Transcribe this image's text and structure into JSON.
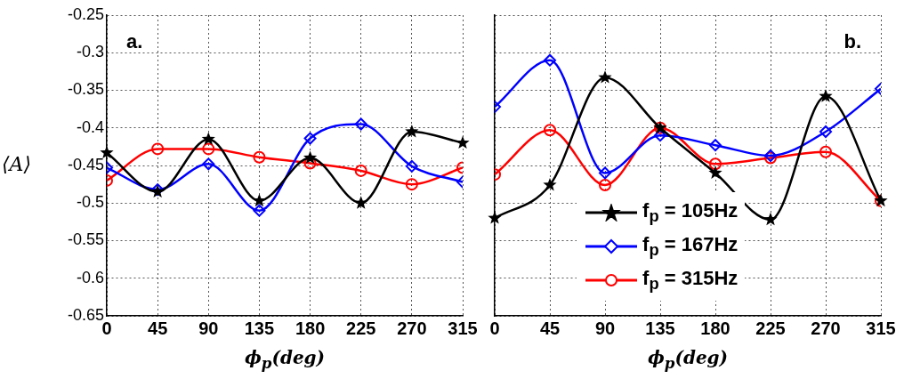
{
  "chart_data": [
    {
      "type": "line",
      "annotations": [
        "a."
      ],
      "xlabel": "ϕ$_{p}$(deg)",
      "ylabel": "⟨A⟩",
      "x": [
        0,
        45,
        90,
        135,
        180,
        225,
        270,
        315
      ],
      "xlim": [
        0,
        315
      ],
      "xticks": [
        0,
        45,
        90,
        135,
        180,
        225,
        270,
        315
      ],
      "ylim": [
        -0.65,
        -0.25
      ],
      "yticks": [
        -0.65,
        -0.6,
        -0.55,
        -0.5,
        -0.45,
        -0.4,
        -0.35,
        -0.3,
        -0.25
      ],
      "grid": true,
      "legend": false,
      "line_style": "solid",
      "series": [
        {
          "color": "#000000",
          "marker": "star",
          "values": [
            -0.433,
            -0.485,
            -0.415,
            -0.497,
            -0.44,
            -0.5,
            -0.405,
            -0.42
          ]
        },
        {
          "color": "#0000ff",
          "marker": "diamond",
          "values": [
            -0.453,
            -0.482,
            -0.448,
            -0.51,
            -0.414,
            -0.395,
            -0.451,
            -0.472
          ]
        },
        {
          "color": "#ff0000",
          "marker": "circle",
          "values": [
            -0.47,
            -0.428,
            -0.428,
            -0.439,
            -0.447,
            -0.457,
            -0.475,
            -0.453
          ]
        }
      ]
    },
    {
      "type": "line",
      "annotations": [
        "b."
      ],
      "xlabel": "ϕ$_{p}$(deg)",
      "x": [
        0,
        45,
        90,
        135,
        180,
        225,
        270,
        315
      ],
      "xlim": [
        0,
        315
      ],
      "xticks": [
        0,
        45,
        90,
        135,
        180,
        225,
        270,
        315
      ],
      "ylim": [
        -0.65,
        -0.25
      ],
      "yticks": [
        -0.65,
        -0.6,
        -0.55,
        -0.5,
        -0.45,
        -0.4,
        -0.35,
        -0.3,
        -0.25
      ],
      "tick_labels": "x",
      "grid": true,
      "legend": "bottom",
      "line_style": "solid",
      "series": [
        {
          "name": "f$_{p}$ = 105Hz",
          "color": "#000000",
          "marker": "star",
          "values": [
            -0.52,
            -0.476,
            -0.333,
            -0.4,
            -0.46,
            -0.522,
            -0.358,
            -0.497
          ]
        },
        {
          "name": "f$_{p}$ = 167Hz",
          "color": "#0000ff",
          "marker": "diamond",
          "values": [
            -0.372,
            -0.31,
            -0.46,
            -0.41,
            -0.423,
            -0.437,
            -0.405,
            -0.348
          ]
        },
        {
          "name": "f$_{p}$ = 315Hz",
          "color": "#ff0000",
          "marker": "circle",
          "values": [
            -0.462,
            -0.403,
            -0.476,
            -0.4,
            -0.448,
            -0.44,
            -0.432,
            -0.497
          ]
        }
      ]
    }
  ]
}
